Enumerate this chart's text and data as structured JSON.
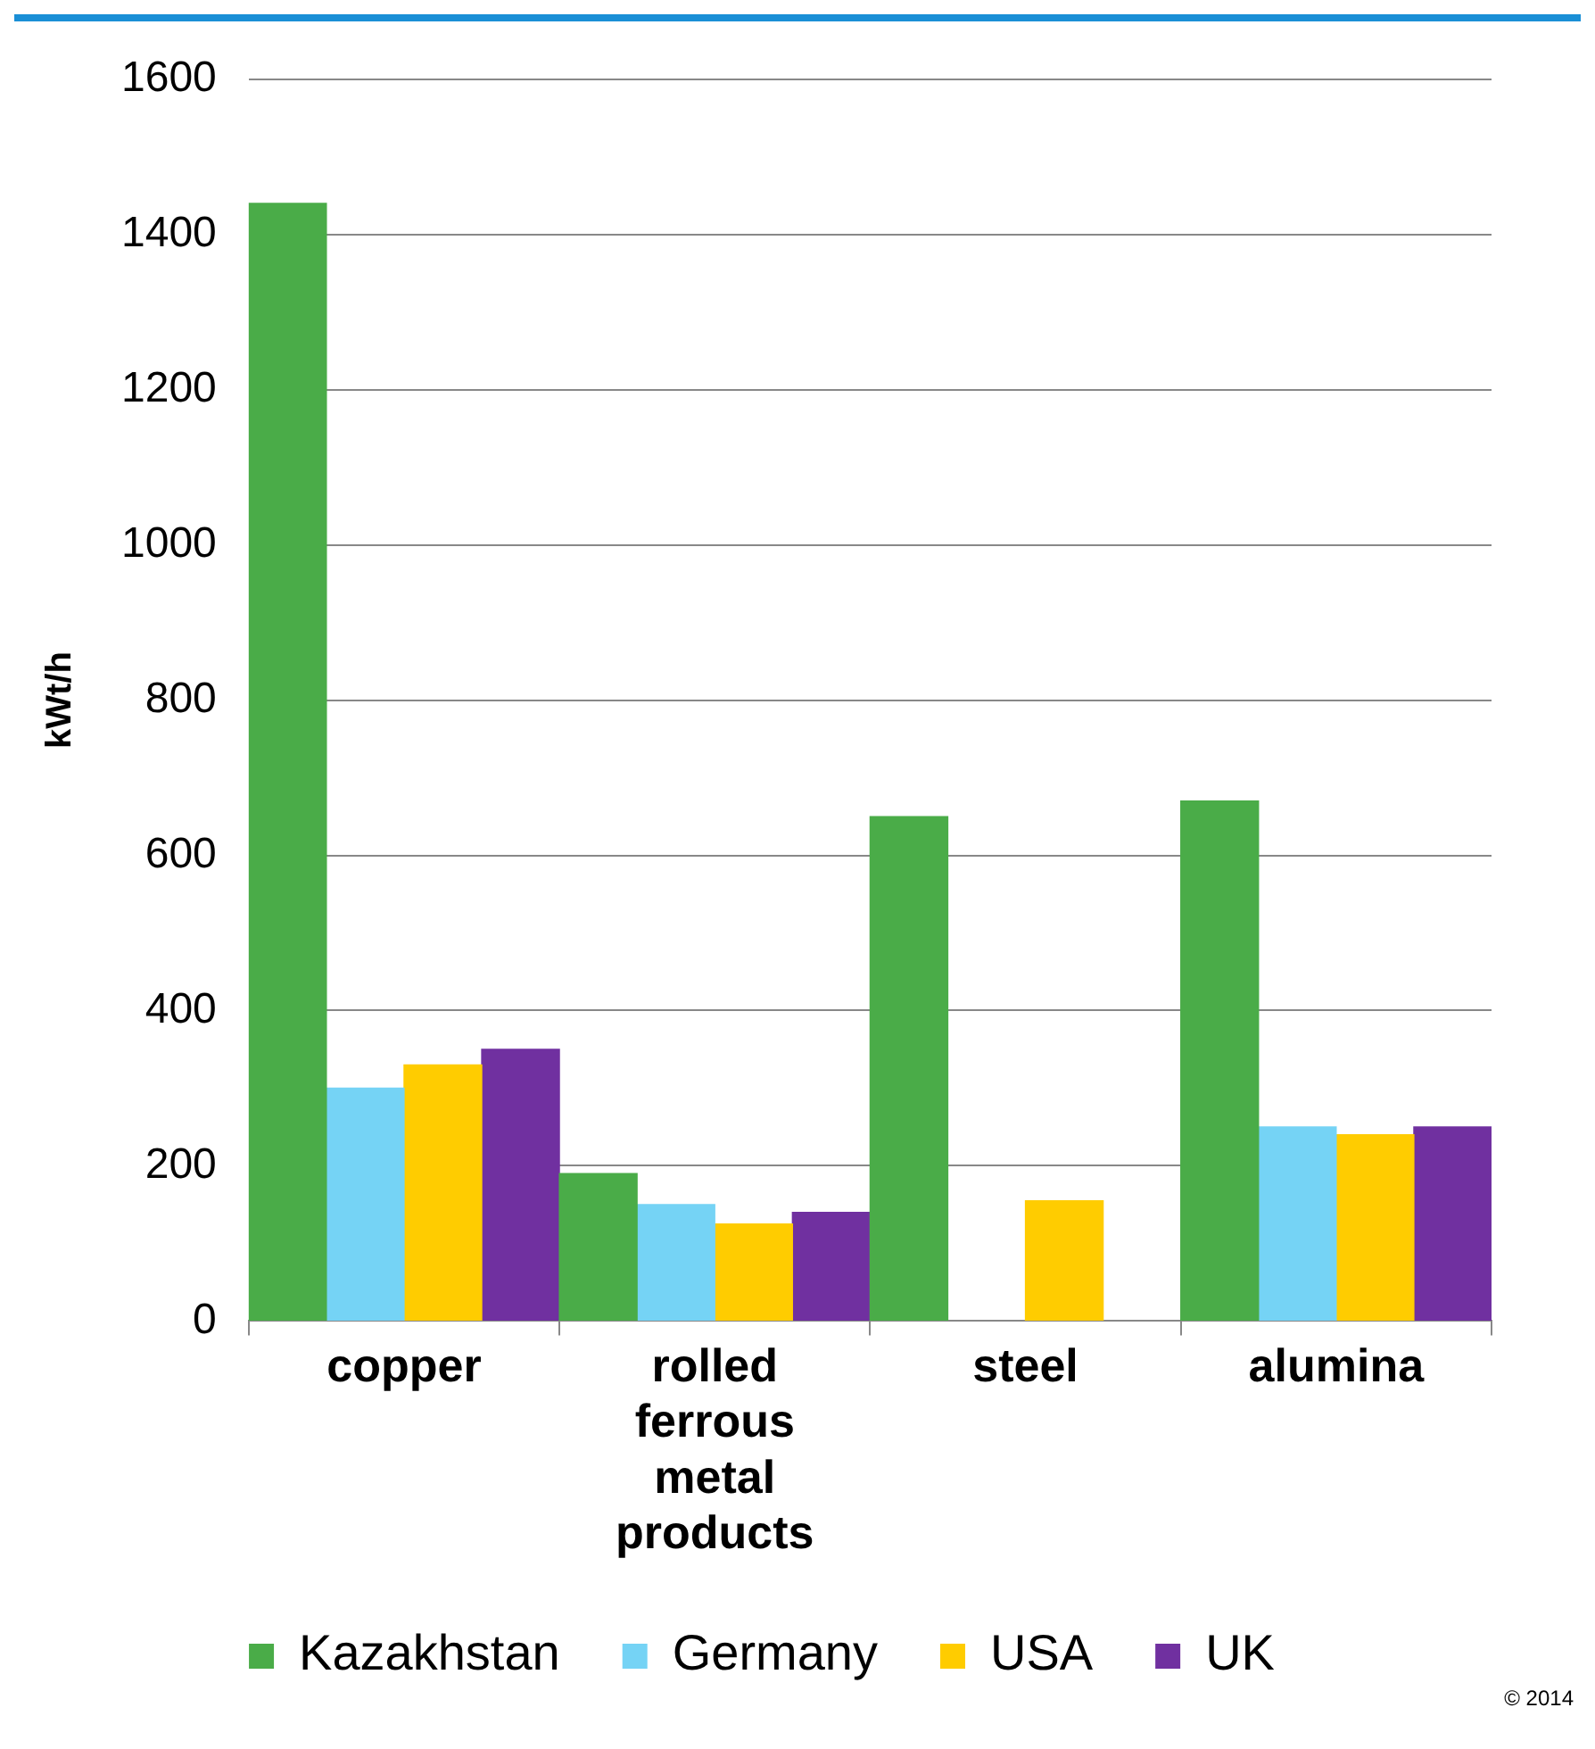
{
  "chart_data": {
    "type": "bar",
    "ylabel": "kWt/h",
    "categories": [
      "copper",
      "rolled ferrous metal products",
      "steel",
      "alumina"
    ],
    "series": [
      {
        "name": "Kazakhstan",
        "color": "#4aac48",
        "values": [
          1440,
          190,
          650,
          670
        ]
      },
      {
        "name": "Germany",
        "color": "#75d3f5",
        "values": [
          300,
          150,
          null,
          250
        ]
      },
      {
        "name": "USA",
        "color": "#ffcc00",
        "values": [
          330,
          125,
          155,
          240
        ]
      },
      {
        "name": "UK",
        "color": "#7030a0",
        "values": [
          350,
          140,
          null,
          250
        ]
      }
    ],
    "ylim": [
      0,
      1600
    ],
    "yticks": [
      0,
      200,
      400,
      600,
      800,
      1000,
      1200,
      1400,
      1600
    ],
    "grid": "y",
    "legend": "bottom",
    "annotations": [
      "© 2014"
    ]
  }
}
